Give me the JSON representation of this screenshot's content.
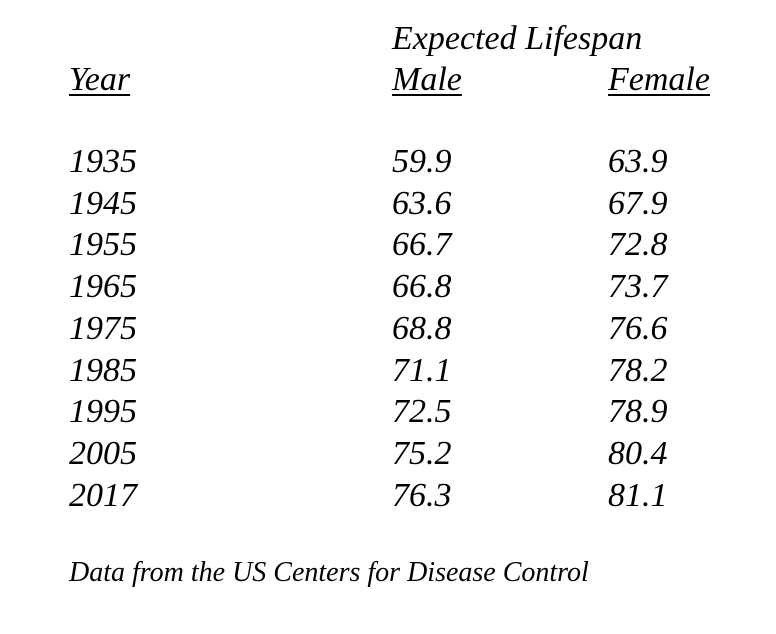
{
  "header": {
    "group_label": "Expected Lifespan",
    "year_label": "Year",
    "male_label": "Male",
    "female_label": "Female"
  },
  "table": {
    "columns": [
      "Year",
      "Male",
      "Female"
    ],
    "rows": [
      {
        "year": "1935",
        "male": "59.9",
        "female": "63.9"
      },
      {
        "year": "1945",
        "male": "63.6",
        "female": "67.9"
      },
      {
        "year": "1955",
        "male": "66.7",
        "female": "72.8"
      },
      {
        "year": "1965",
        "male": "66.8",
        "female": "73.7"
      },
      {
        "year": "1975",
        "male": "68.8",
        "female": "76.6"
      },
      {
        "year": "1985",
        "male": "71.1",
        "female": "78.2"
      },
      {
        "year": "1995",
        "male": "72.5",
        "female": "78.9"
      },
      {
        "year": "2005",
        "male": "75.2",
        "female": "80.4"
      },
      {
        "year": "2017",
        "male": "76.3",
        "female": "81.1"
      }
    ]
  },
  "footnote": "Data from the US Centers for Disease Control"
}
